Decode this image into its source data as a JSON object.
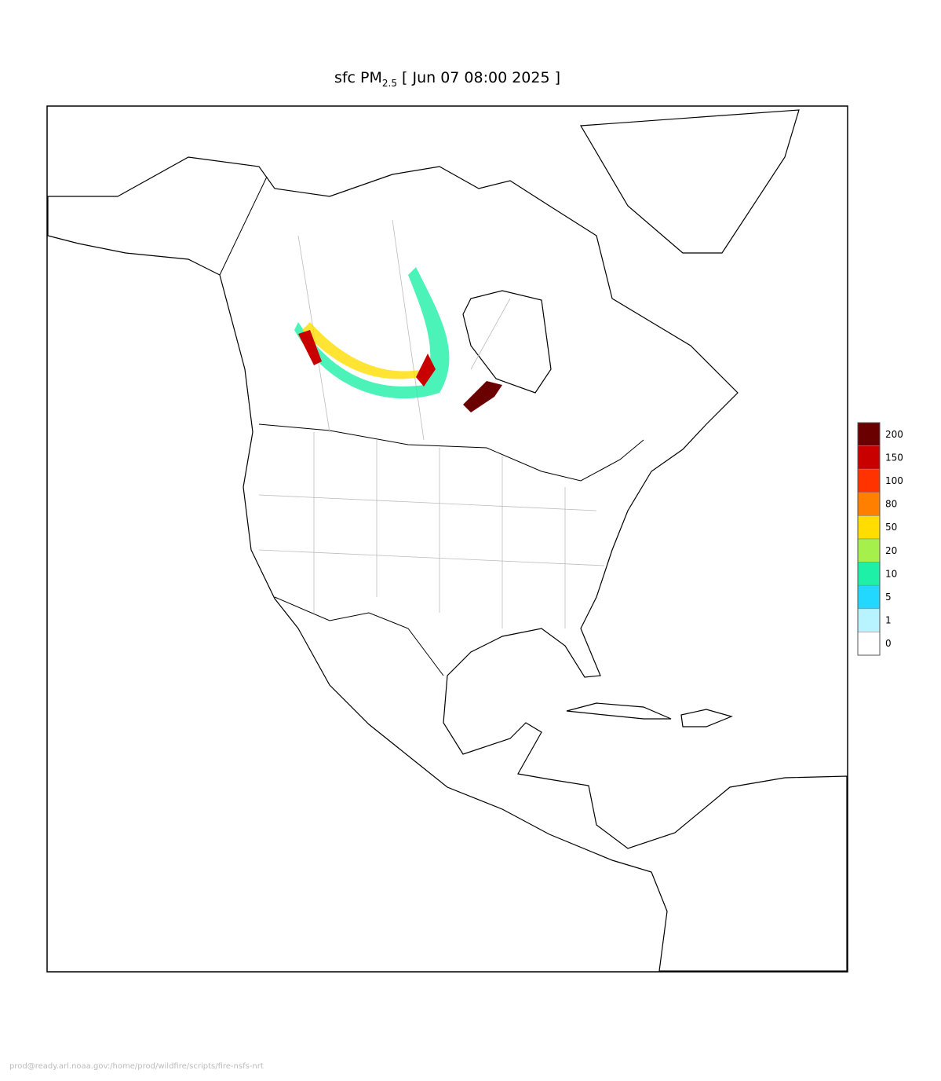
{
  "title": {
    "main": "sfc PM",
    "subscript": "2.5",
    "rest": "[ Jun 07 08:00 2025 ]"
  },
  "legend": {
    "levels": [
      200,
      150,
      100,
      80,
      50,
      20,
      10,
      5,
      1,
      0
    ],
    "colors": [
      "#6b0000",
      "#c80000",
      "#ff3300",
      "#ff8000",
      "#ffdd00",
      "#a6f04c",
      "#1ff0a8",
      "#22d8ff",
      "#b8f4ff",
      "#ffffff"
    ]
  },
  "footer": "prod@ready.arl.noaa.gov:/home/prod/wildfire/scripts/fire-nsfs-nrt"
}
